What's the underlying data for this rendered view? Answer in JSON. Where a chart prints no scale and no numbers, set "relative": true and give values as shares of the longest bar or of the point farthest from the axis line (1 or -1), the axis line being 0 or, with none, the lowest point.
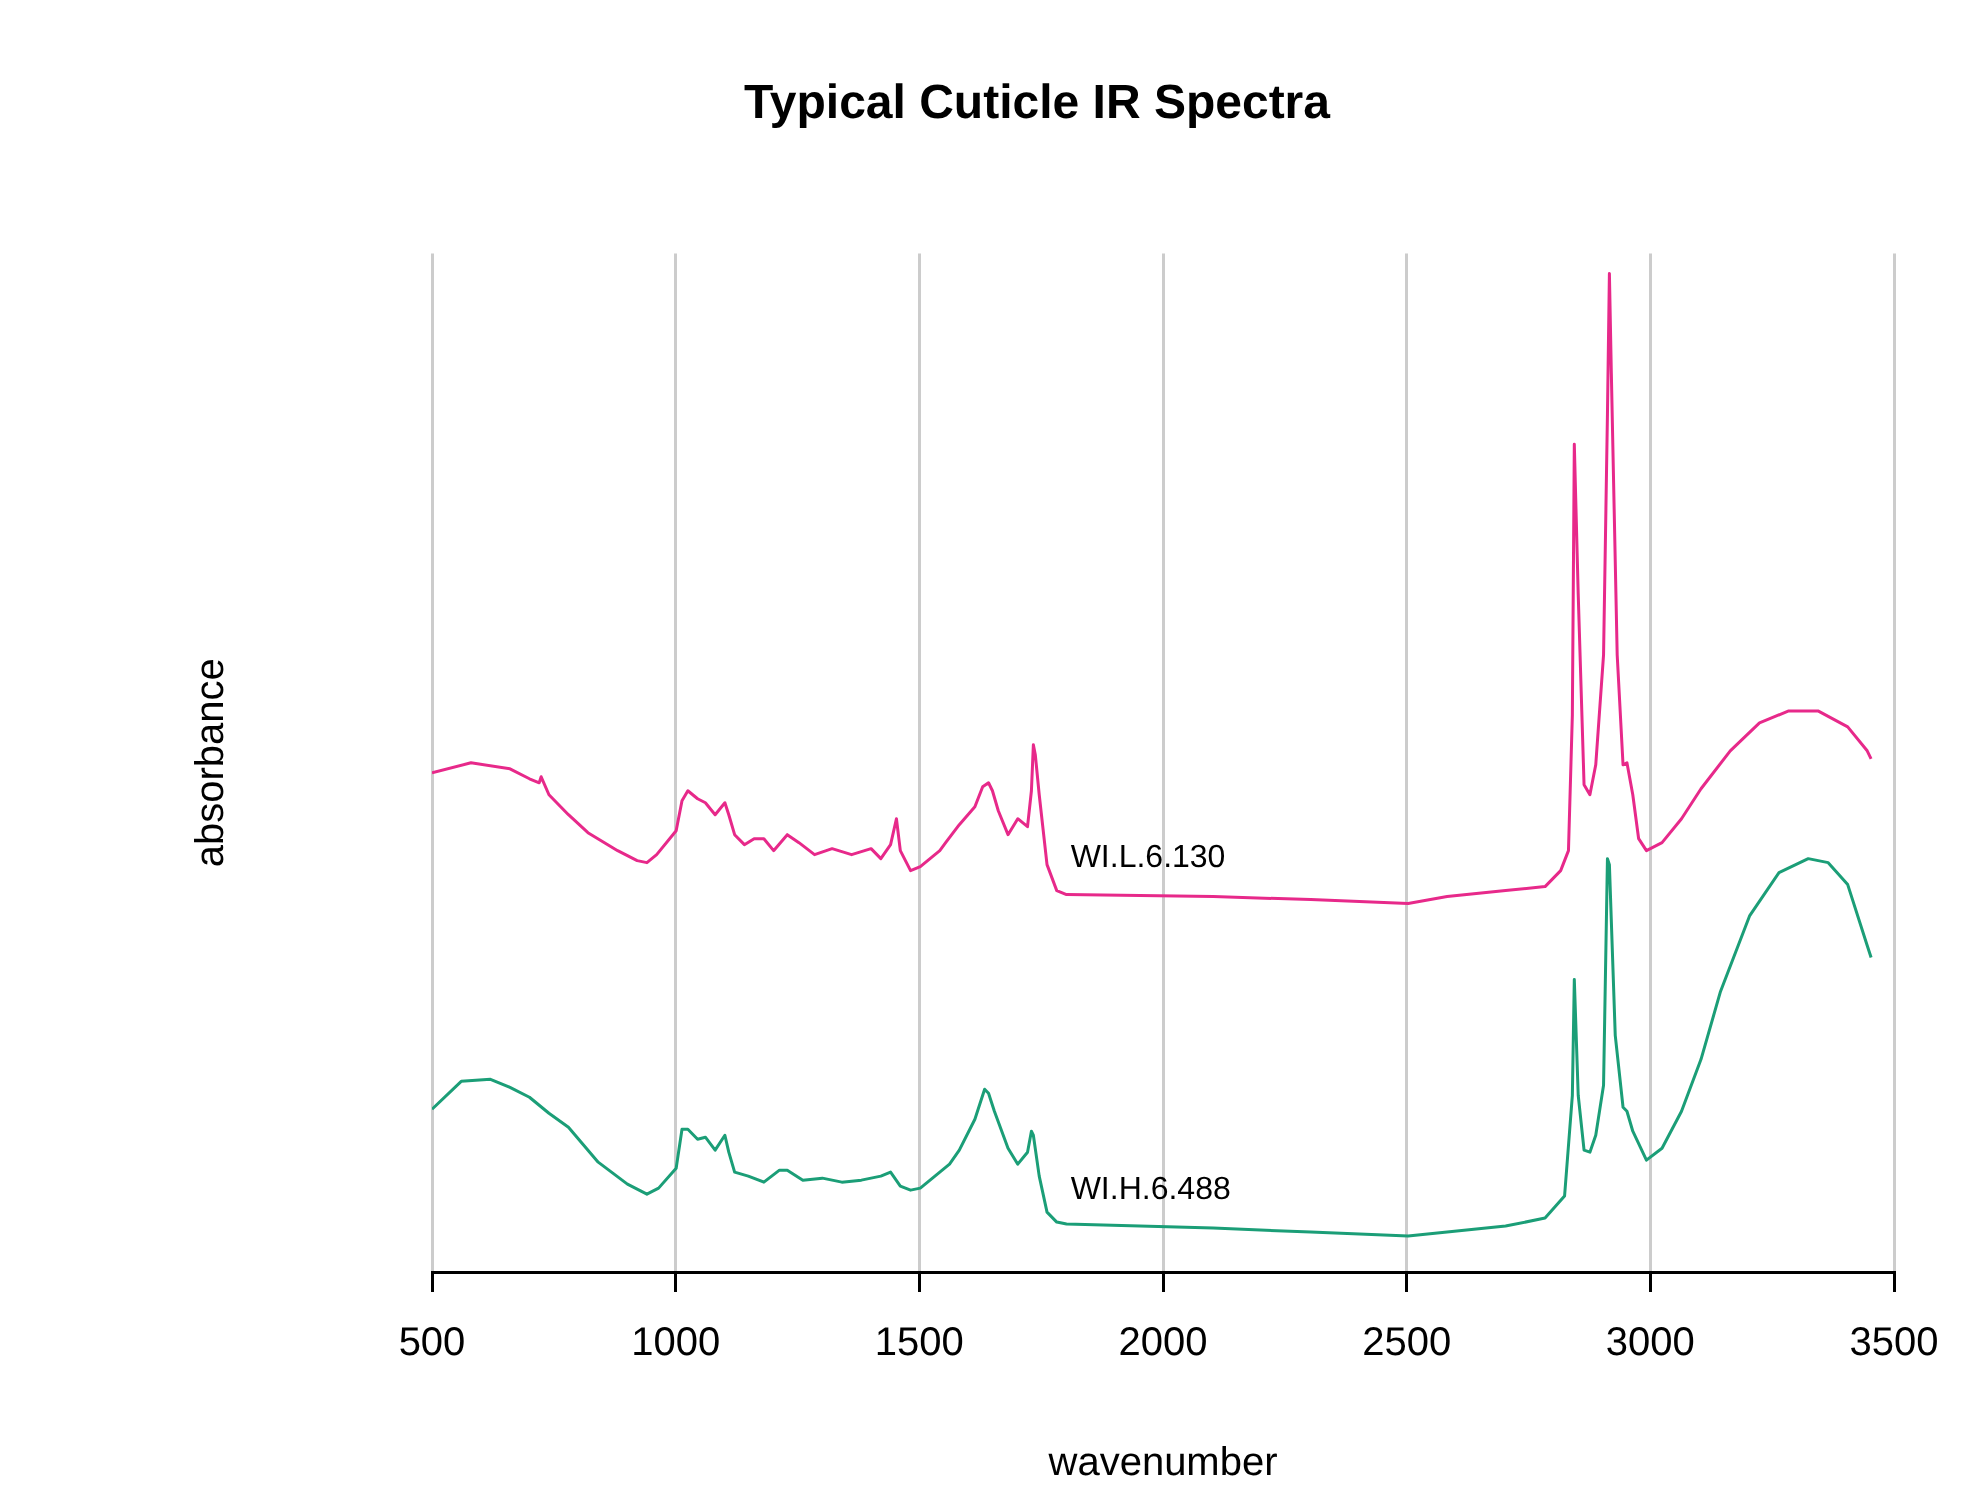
{
  "chart_data": {
    "type": "line",
    "title": "Typical Cuticle IR Spectra",
    "xlabel": "wavenumber",
    "ylabel": "absorbance",
    "relative": true,
    "grid": "x",
    "legend": false,
    "marker": "none",
    "line_style": "solid",
    "xlim": [
      500,
      3500
    ],
    "xticks": [
      500,
      1000,
      1500,
      2000,
      2500,
      3000,
      3500
    ],
    "series": [
      {
        "name": "WI.L.6.130",
        "color": "#e7298a",
        "x": [
          500,
          580,
          660,
          700,
          720,
          724,
          740,
          780,
          820,
          881,
          921,
          941,
          961,
          1001,
          1013,
          1025,
          1045,
          1061,
          1081,
          1101,
          1109,
          1121,
          1141,
          1161,
          1181,
          1201,
          1229,
          1253,
          1285,
          1321,
          1361,
          1401,
          1421,
          1441,
          1453,
          1461,
          1482,
          1502,
          1522,
          1542,
          1554,
          1582,
          1614,
          1630,
          1642,
          1650,
          1662,
          1682,
          1702,
          1722,
          1730,
          1734,
          1738,
          1746,
          1762,
          1782,
          1802,
          2103,
          2303,
          2503,
          2583,
          2703,
          2784,
          2816,
          2832,
          2840,
          2844,
          2852,
          2864,
          2876,
          2888,
          2904,
          2912,
          2916,
          2920,
          2932,
          2944,
          2952,
          2964,
          2976,
          2992,
          3024,
          3064,
          3104,
          3164,
          3224,
          3284,
          3344,
          3405,
          3445,
          3453
        ],
        "values": [
          0.5,
          0.51,
          0.504,
          0.494,
          0.49,
          0.496,
          0.478,
          0.458,
          0.44,
          0.422,
          0.412,
          0.41,
          0.418,
          0.442,
          0.472,
          0.482,
          0.474,
          0.47,
          0.458,
          0.47,
          0.458,
          0.438,
          0.428,
          0.434,
          0.434,
          0.422,
          0.438,
          0.43,
          0.418,
          0.424,
          0.418,
          0.424,
          0.414,
          0.428,
          0.454,
          0.422,
          0.402,
          0.406,
          0.414,
          0.422,
          0.43,
          0.448,
          0.466,
          0.486,
          0.49,
          0.482,
          0.462,
          0.438,
          0.454,
          0.446,
          0.482,
          0.528,
          0.518,
          0.478,
          0.408,
          0.382,
          0.378,
          0.376,
          0.373,
          0.369,
          0.376,
          0.382,
          0.386,
          0.402,
          0.422,
          0.558,
          0.829,
          0.679,
          0.488,
          0.478,
          0.508,
          0.618,
          0.859,
          1.0,
          0.9,
          0.618,
          0.508,
          0.51,
          0.478,
          0.434,
          0.422,
          0.43,
          0.454,
          0.484,
          0.522,
          0.55,
          0.562,
          0.562,
          0.546,
          0.522,
          0.514
        ]
      },
      {
        "name": "WI.H.6.488",
        "color": "#1b9e77",
        "x": [
          500,
          560,
          620,
          660,
          700,
          740,
          780,
          841,
          901,
          941,
          965,
          1001,
          1013,
          1025,
          1045,
          1061,
          1081,
          1101,
          1109,
          1121,
          1149,
          1181,
          1213,
          1229,
          1261,
          1301,
          1341,
          1381,
          1421,
          1441,
          1461,
          1482,
          1502,
          1522,
          1542,
          1562,
          1582,
          1614,
          1634,
          1642,
          1654,
          1682,
          1702,
          1722,
          1730,
          1734,
          1746,
          1762,
          1782,
          1802,
          2103,
          2303,
          2503,
          2583,
          2703,
          2784,
          2824,
          2840,
          2844,
          2852,
          2864,
          2876,
          2888,
          2904,
          2912,
          2916,
          2928,
          2944,
          2952,
          2964,
          2992,
          3024,
          3064,
          3104,
          3144,
          3204,
          3264,
          3324,
          3365,
          3405,
          3445,
          3453
        ],
        "values": [
          0.163,
          0.191,
          0.193,
          0.185,
          0.175,
          0.159,
          0.145,
          0.11,
          0.088,
          0.078,
          0.084,
          0.104,
          0.143,
          0.143,
          0.133,
          0.135,
          0.122,
          0.137,
          0.12,
          0.1,
          0.096,
          0.09,
          0.102,
          0.102,
          0.092,
          0.094,
          0.09,
          0.092,
          0.096,
          0.1,
          0.086,
          0.082,
          0.084,
          0.092,
          0.1,
          0.108,
          0.122,
          0.153,
          0.183,
          0.179,
          0.161,
          0.124,
          0.108,
          0.12,
          0.141,
          0.137,
          0.096,
          0.06,
          0.05,
          0.048,
          0.044,
          0.04,
          0.036,
          0.04,
          0.046,
          0.054,
          0.076,
          0.177,
          0.293,
          0.177,
          0.122,
          0.12,
          0.137,
          0.187,
          0.414,
          0.408,
          0.237,
          0.165,
          0.161,
          0.141,
          0.112,
          0.124,
          0.161,
          0.213,
          0.281,
          0.357,
          0.4,
          0.414,
          0.41,
          0.388,
          0.327,
          0.315
        ]
      }
    ]
  }
}
